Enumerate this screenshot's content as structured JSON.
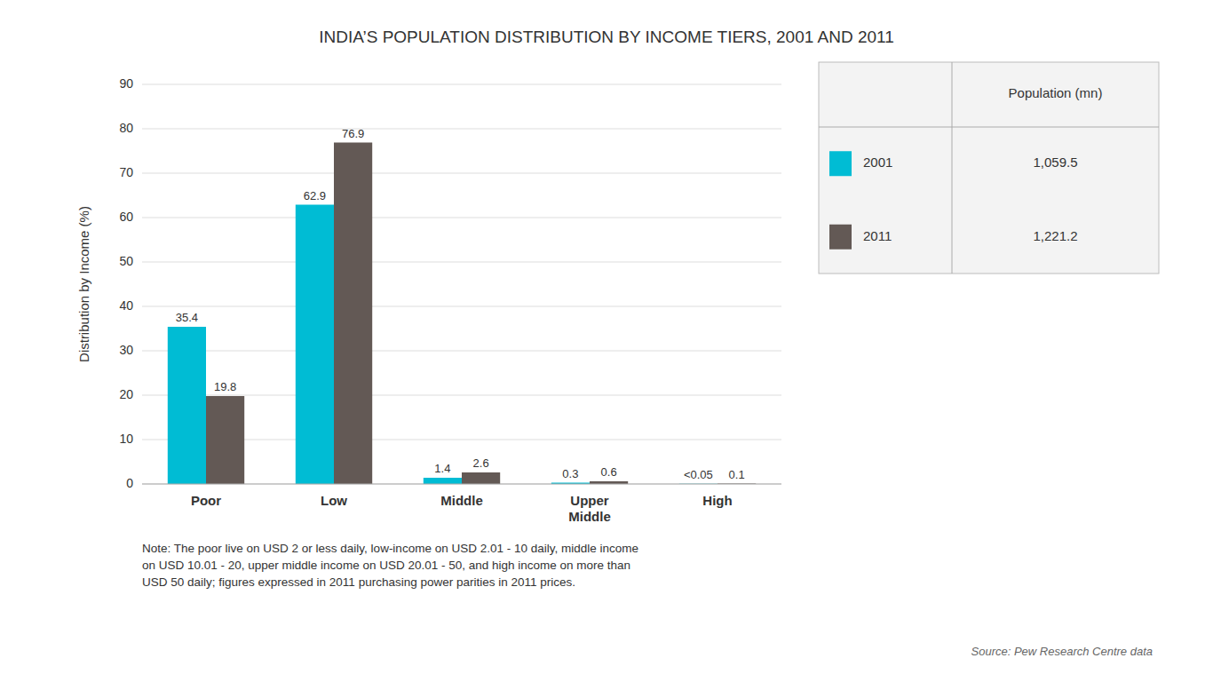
{
  "chart_data": {
    "type": "bar",
    "title": "INDIA’S POPULATION DISTRIBUTION BY INCOME TIERS, 2001 AND 2011",
    "ylabel": "Distribution by Income (%)",
    "categories": [
      "Poor",
      "Low",
      "Middle",
      "Upper\nMiddle",
      "High"
    ],
    "series": [
      {
        "name": "2001",
        "color": "#00BCD4",
        "values": [
          35.4,
          62.9,
          1.4,
          0.3,
          0.05
        ],
        "value_labels": [
          "35.4",
          "62.9",
          "1.4",
          "0.3",
          "<0.05"
        ],
        "population": {
          "value": 1059.5,
          "label": "1,059.5"
        }
      },
      {
        "name": "2011",
        "color": "#635955",
        "values": [
          19.8,
          76.9,
          2.6,
          0.6,
          0.1
        ],
        "population": {
          "value": 1221.2,
          "label": "1,221.2"
        }
      }
    ],
    "legend_header": "Population (mn)",
    "ylim": [
      0,
      90
    ],
    "yticks": [
      0,
      10,
      20,
      30,
      40,
      50,
      60,
      70,
      80,
      90
    ],
    "grid": true,
    "data_labels": true,
    "legend": "upper right",
    "note": "Note: The poor live on USD 2 or less daily, low-income on USD 2.01 - 10 daily, middle income\non USD 10.01 - 20, upper middle income on USD 20.01 - 50, and high income on more than\nUSD 50 daily; figures expressed in 2011 purchasing power parities in 2011 prices.",
    "source": "Source: Pew Research Centre data"
  }
}
